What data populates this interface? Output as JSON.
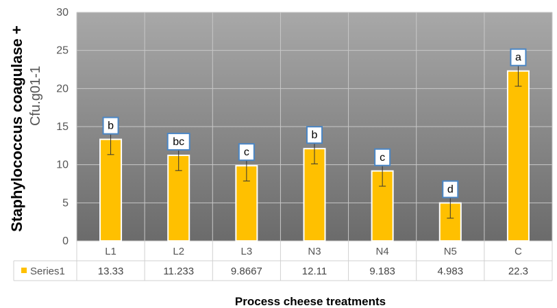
{
  "chart_data": {
    "type": "bar",
    "categories": [
      "L1",
      "L2",
      "L3",
      "N3",
      "N4",
      "N5",
      "C"
    ],
    "series": [
      {
        "name": "Series1",
        "values": [
          13.33,
          11.233,
          9.8667,
          12.11,
          9.183,
          4.983,
          22.3
        ],
        "value_labels": [
          "13.33",
          "11.233",
          "9.8667",
          "12.11",
          "9.183",
          "4.983",
          "22.3"
        ],
        "error": [
          2.0,
          2.0,
          2.0,
          2.0,
          2.0,
          2.0,
          2.0
        ],
        "significance_letters": [
          "b",
          "bc",
          "c",
          "b",
          "c",
          "d",
          "a"
        ],
        "color": "#FFC000"
      }
    ],
    "ylabel": "Staphylococcus coagulase +",
    "ylabel_unit": "Cfu.g01-1",
    "xlabel": "Process cheese treatments",
    "ylim": [
      0,
      30
    ],
    "yticks": [
      "0",
      "5",
      "10",
      "15",
      "20",
      "25",
      "30"
    ],
    "grid": true,
    "legend": "data-table",
    "plot_background": [
      "#A8A8A8",
      "#6B6B6B"
    ],
    "label_box_border": "#4A86C5"
  }
}
